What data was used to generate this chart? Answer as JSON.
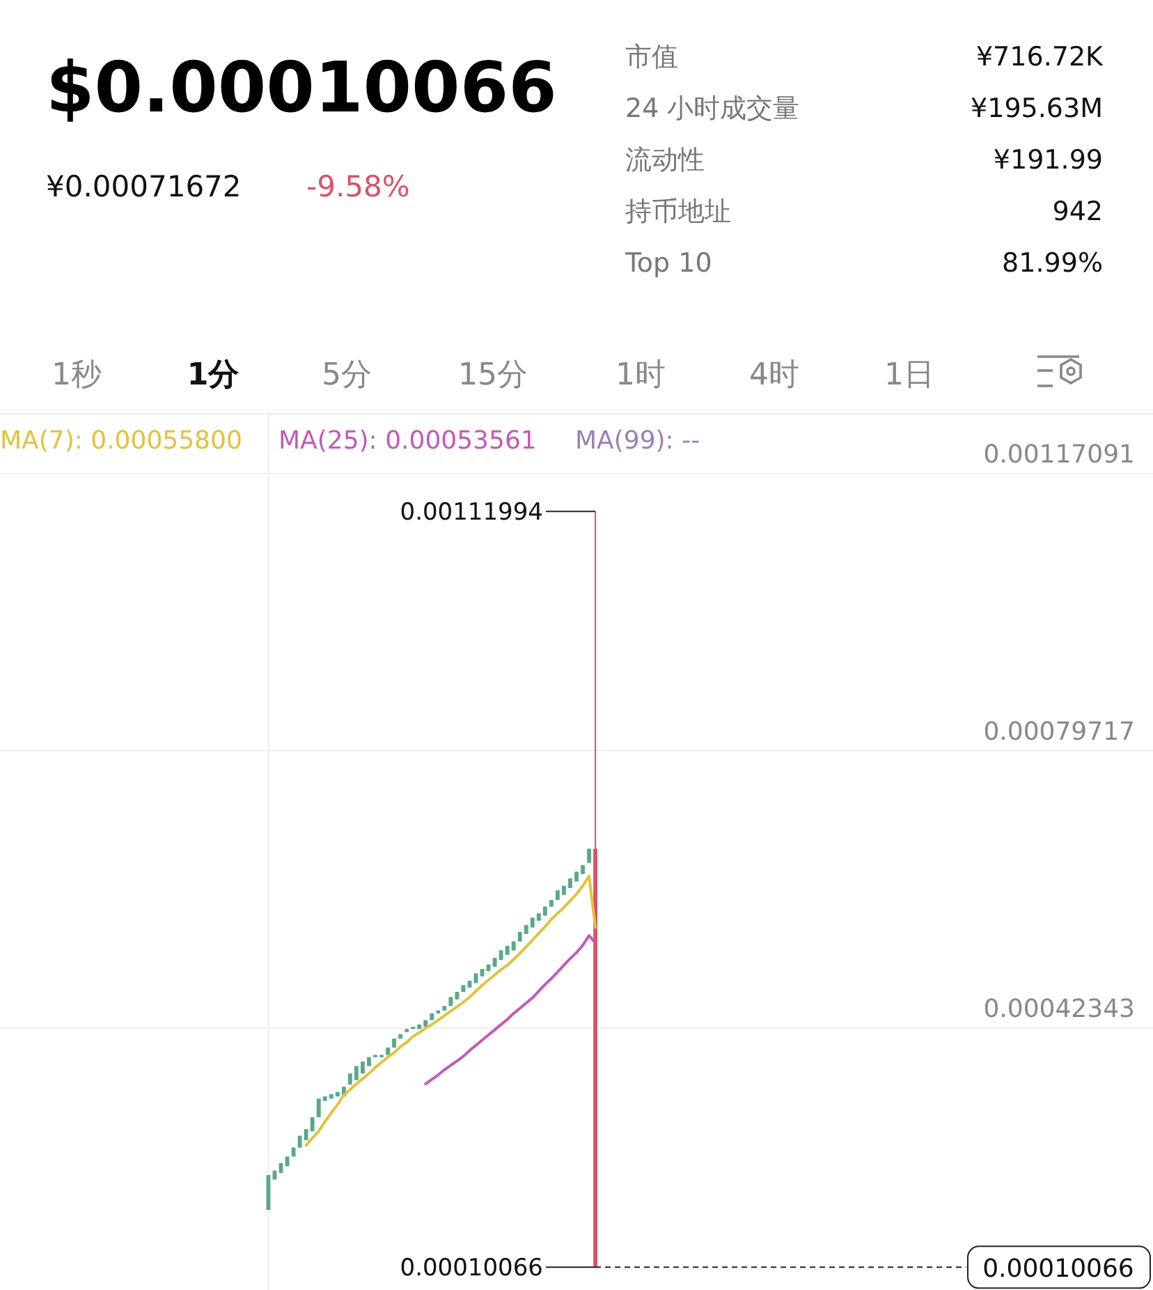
{
  "chart_data": {
    "type": "candlestick",
    "title": "$0.00010066",
    "annotations": [
      "¥0.00071672",
      "-9.58%",
      "市值",
      "¥716.72K",
      "24 小时成交量",
      "¥195.63M",
      "流动性",
      "¥191.99",
      "持币地址",
      "942",
      "Top 10",
      "81.99%",
      "1秒",
      "1分",
      "5分",
      "15分",
      "1时",
      "4时",
      "1日",
      "0.00111994",
      "0.00010066"
    ],
    "categories": [
      null,
      null,
      null,
      null,
      null,
      null,
      null,
      null,
      null,
      null,
      null,
      null,
      null,
      null,
      null,
      null,
      null,
      null,
      null,
      null,
      null,
      null,
      null,
      null,
      null,
      null,
      null,
      null,
      null,
      null,
      null,
      null,
      null,
      null,
      null,
      null,
      null,
      null,
      null,
      null,
      null,
      null,
      null,
      null,
      null,
      null,
      null,
      null,
      null,
      null,
      null,
      null,
      null,
      null,
      null,
      null,
      null,
      null,
      null,
      null,
      null,
      null,
      null,
      null,
      null,
      null,
      null,
      null,
      null,
      null,
      null,
      null,
      null,
      null,
      null,
      null,
      null,
      null,
      null,
      null,
      null,
      null,
      null,
      null,
      null,
      null,
      null,
      null,
      null,
      null,
      null,
      null,
      null,
      null,
      null,
      null,
      null,
      null,
      null,
      null,
      null,
      null,
      null,
      null,
      null,
      null,
      null,
      null,
      null,
      null,
      null,
      null,
      null,
      null,
      null,
      null,
      null,
      null,
      null,
      null,
      null,
      null,
      null,
      null,
      null,
      null,
      null,
      null,
      null,
      null,
      null,
      null,
      null,
      null,
      null,
      null,
      null,
      null,
      null,
      null,
      null,
      null,
      null,
      null,
      null,
      null,
      null,
      null,
      null,
      null,
      null,
      null,
      null,
      null,
      null,
      null,
      null,
      null,
      null,
      null,
      null,
      null,
      null,
      null,
      null,
      null,
      null,
      null,
      null,
      null,
      null,
      null,
      null,
      null,
      null,
      null,
      null,
      null,
      null,
      null,
      null,
      null,
      null
    ],
    "ohlc": [
      null,
      null,
      null,
      null,
      null,
      null,
      null,
      null,
      null,
      null,
      null,
      null,
      null,
      null,
      null,
      null,
      null,
      null,
      null,
      null,
      null,
      null,
      null,
      null,
      null,
      null,
      null,
      null,
      null,
      null,
      null,
      null,
      null,
      null,
      null,
      null,
      null,
      null,
      null,
      null,
      null,
      null,
      [
        0.000178,
        0.000225,
        0.000178,
        0.000225
      ],
      [
        0.000219,
        0.000231,
        0.000219,
        0.000231
      ],
      [
        0.000228,
        0.000241,
        0.000228,
        0.000241
      ],
      [
        0.000237,
        0.00025,
        0.000237,
        0.00025
      ],
      [
        0.00025,
        0.000262,
        0.00025,
        0.000262
      ],
      [
        0.000262,
        0.000278,
        0.000262,
        0.000278
      ],
      [
        0.000272,
        0.000287,
        0.000272,
        0.000287
      ],
      [
        0.000284,
        0.000303,
        0.000284,
        0.000303
      ],
      [
        0.000303,
        0.000328,
        0.000303,
        0.000328
      ],
      [
        0.000325,
        0.000331,
        0.000325,
        0.000331
      ],
      [
        0.000328,
        0.000334,
        0.000328,
        0.000334
      ],
      [
        0.000331,
        0.000337,
        0.000331,
        0.000337
      ],
      [
        0.000331,
        0.000344,
        0.000331,
        0.000344
      ],
      [
        0.000347,
        0.000362,
        0.000347,
        0.000362
      ],
      [
        0.000353,
        0.000372,
        0.000353,
        0.000372
      ],
      [
        0.000362,
        0.000378,
        0.000362,
        0.000378
      ],
      [
        0.000372,
        0.000384,
        0.000372,
        0.000384
      ],
      [
        0.000384,
        0.000387,
        0.000384,
        0.000387
      ],
      [
        0.000384,
        0.000387,
        0.000384,
        0.000387
      ],
      [
        0.000387,
        0.000397,
        0.000387,
        0.000397
      ],
      [
        0.000397,
        0.000409,
        0.000397,
        0.000409
      ],
      [
        0.000409,
        0.000415,
        0.000409,
        0.000415
      ],
      [
        0.000418,
        0.000422,
        0.000418,
        0.000422
      ],
      [
        0.000422,
        0.000425,
        0.000422,
        0.000425
      ],
      [
        0.000422,
        0.000428,
        0.000422,
        0.000428
      ],
      [
        0.000425,
        0.000434,
        0.000425,
        0.000434
      ],
      [
        0.000434,
        0.000443,
        0.000434,
        0.000443
      ],
      [
        0.000443,
        0.000447,
        0.000443,
        0.000447
      ],
      [
        0.000447,
        0.000453,
        0.000447,
        0.000453
      ],
      [
        0.000453,
        0.000465,
        0.000453,
        0.000465
      ],
      [
        0.000462,
        0.000472,
        0.000462,
        0.000472
      ],
      [
        0.000472,
        0.000481,
        0.000472,
        0.000481
      ],
      [
        0.000478,
        0.000487,
        0.000478,
        0.000487
      ],
      [
        0.000484,
        0.000497,
        0.000484,
        0.000497
      ],
      [
        0.000493,
        0.000503,
        0.000493,
        0.000503
      ],
      [
        0.0005,
        0.000509,
        0.0005,
        0.000509
      ],
      [
        0.000506,
        0.000518,
        0.000506,
        0.000518
      ],
      [
        0.000515,
        0.000528,
        0.000515,
        0.000528
      ],
      [
        0.000522,
        0.000534,
        0.000522,
        0.000534
      ],
      [
        0.000528,
        0.00054,
        0.000528,
        0.00054
      ],
      [
        0.00054,
        0.000553,
        0.00054,
        0.000553
      ],
      [
        0.00055,
        0.000562,
        0.00055,
        0.000562
      ],
      [
        0.000559,
        0.000572,
        0.000559,
        0.000572
      ],
      [
        0.000568,
        0.000578,
        0.000568,
        0.000578
      ],
      [
        0.000575,
        0.000587,
        0.000575,
        0.000587
      ],
      [
        0.000587,
        0.000596,
        0.000587,
        0.000596
      ],
      [
        0.000596,
        0.000609,
        0.000596,
        0.000609
      ],
      [
        0.000603,
        0.000615,
        0.000603,
        0.000615
      ],
      [
        0.000612,
        0.000625,
        0.000612,
        0.000625
      ],
      [
        0.000621,
        0.000634,
        0.000621,
        0.000634
      ],
      [
        0.000631,
        0.000643,
        0.000631,
        0.000643
      ],
      [
        0.000646,
        0.000665,
        0.000646,
        0.000665
      ],
      [
        0.000665,
        0.00111994,
        0.00010066,
        0.00010066
      ],
      null,
      null,
      null,
      null,
      null,
      null,
      null,
      null,
      null,
      null,
      null,
      null,
      null,
      null,
      null,
      null,
      null,
      null,
      null,
      null,
      null,
      null,
      null,
      null,
      null,
      null,
      null,
      null,
      null,
      null,
      null,
      null,
      null,
      null,
      null,
      null,
      null,
      null,
      null,
      null,
      null,
      null,
      null,
      null,
      null,
      null,
      null,
      null,
      null,
      null,
      null,
      null,
      null,
      null,
      null,
      null,
      null,
      null,
      null,
      null,
      null,
      null,
      null,
      null,
      null,
      null,
      null,
      null,
      null,
      null,
      null,
      null,
      null,
      null,
      null,
      null,
      null,
      null,
      null,
      null,
      null,
      null,
      null,
      null,
      null,
      null,
      null,
      null
    ],
    "series": [
      {
        "name": "MA(7): 0.00055800",
        "type": "line",
        "color": "#e2c23e",
        "values": [
          null,
          null,
          null,
          null,
          null,
          null,
          null,
          null,
          null,
          null,
          null,
          null,
          null,
          null,
          null,
          null,
          null,
          null,
          null,
          null,
          null,
          null,
          null,
          null,
          null,
          null,
          null,
          null,
          null,
          null,
          null,
          null,
          null,
          null,
          null,
          null,
          null,
          null,
          null,
          null,
          null,
          null,
          null,
          null,
          null,
          null,
          null,
          null,
          0.000265,
          0.000275,
          0.000284,
          0.000297,
          0.000309,
          0.00032,
          0.000333,
          0.00034,
          0.000348,
          0.000355,
          0.000362,
          0.00037,
          0.000377,
          0.000384,
          0.00039,
          0.000398,
          0.000404,
          0.000412,
          0.000417,
          0.000423,
          0.000428,
          0.000434,
          0.00044,
          0.000446,
          0.000452,
          0.000458,
          0.000465,
          0.000473,
          0.000481,
          0.000488,
          0.000495,
          0.000502,
          0.000508,
          0.000516,
          0.000524,
          0.000533,
          0.000542,
          0.000551,
          0.00056,
          0.00057,
          0.000578,
          0.000586,
          0.000595,
          0.000604,
          0.000615,
          0.000628,
          0.000559,
          null,
          null,
          null,
          null,
          null,
          null,
          null,
          null,
          null,
          null,
          null,
          null,
          null,
          null,
          null,
          null,
          null,
          null,
          null,
          null,
          null,
          null,
          null,
          null,
          null,
          null,
          null,
          null,
          null,
          null,
          null,
          null,
          null,
          null,
          null,
          null,
          null,
          null,
          null,
          null,
          null,
          null,
          null,
          null,
          null,
          null,
          null,
          null,
          null,
          null,
          null,
          null,
          null,
          null,
          null,
          null,
          null,
          null,
          null,
          null,
          null,
          null,
          null,
          null,
          null,
          null,
          null,
          null,
          null,
          null,
          null,
          null,
          null,
          null,
          null,
          null,
          null,
          null,
          null,
          null,
          null,
          null,
          null,
          null,
          null,
          null,
          null,
          null
        ]
      },
      {
        "name": "MA(25): 0.00053561",
        "type": "line",
        "color": "#c35ab6",
        "values": [
          null,
          null,
          null,
          null,
          null,
          null,
          null,
          null,
          null,
          null,
          null,
          null,
          null,
          null,
          null,
          null,
          null,
          null,
          null,
          null,
          null,
          null,
          null,
          null,
          null,
          null,
          null,
          null,
          null,
          null,
          null,
          null,
          null,
          null,
          null,
          null,
          null,
          null,
          null,
          null,
          null,
          null,
          null,
          null,
          null,
          null,
          null,
          null,
          null,
          null,
          null,
          null,
          null,
          null,
          null,
          null,
          null,
          null,
          null,
          null,
          null,
          null,
          null,
          null,
          null,
          null,
          null,
          0.000348,
          0.000354,
          0.00036,
          0.000367,
          0.000373,
          0.000379,
          0.000385,
          0.000393,
          0.0004,
          0.000407,
          0.000414,
          0.000421,
          0.000428,
          0.000435,
          0.000443,
          0.00045,
          0.000457,
          0.000464,
          0.000473,
          0.000482,
          0.00049,
          0.000499,
          0.000508,
          0.000517,
          0.000525,
          0.000535,
          0.000548,
          0.000538,
          null,
          null,
          null,
          null,
          null,
          null,
          null,
          null,
          null,
          null,
          null,
          null,
          null,
          null,
          null,
          null,
          null,
          null,
          null,
          null,
          null,
          null,
          null,
          null,
          null,
          null,
          null,
          null,
          null,
          null,
          null,
          null,
          null,
          null,
          null,
          null,
          null,
          null,
          null,
          null,
          null,
          null,
          null,
          null,
          null,
          null,
          null,
          null,
          null,
          null,
          null,
          null,
          null,
          null,
          null,
          null,
          null,
          null,
          null,
          null,
          null,
          null,
          null,
          null,
          null,
          null,
          null,
          null,
          null,
          null,
          null,
          null,
          null,
          null,
          null,
          null,
          null,
          null,
          null,
          null,
          null,
          null,
          null,
          null,
          null,
          null,
          null,
          null
        ]
      },
      {
        "name": "MA(99): --",
        "type": "line",
        "color": "#9a80b8",
        "values": [
          null,
          null,
          null,
          null,
          null,
          null,
          null,
          null,
          null,
          null,
          null,
          null,
          null,
          null,
          null,
          null,
          null,
          null,
          null,
          null,
          null,
          null,
          null,
          null,
          null,
          null,
          null,
          null,
          null,
          null,
          null,
          null,
          null,
          null,
          null,
          null,
          null,
          null,
          null,
          null,
          null,
          null,
          null,
          null,
          null,
          null,
          null,
          null,
          null,
          null,
          null,
          null,
          null,
          null,
          null,
          null,
          null,
          null,
          null,
          null,
          null,
          null,
          null,
          null,
          null,
          null,
          null,
          null,
          null,
          null,
          null,
          null,
          null,
          null,
          null,
          null,
          null,
          null,
          null,
          null,
          null,
          null,
          null,
          null,
          null,
          null,
          null,
          null,
          null,
          null,
          null,
          null,
          null,
          null,
          null,
          null,
          null,
          null,
          null,
          null,
          null,
          null,
          null,
          null,
          null,
          null,
          null,
          null,
          null,
          null,
          null,
          null,
          null,
          null,
          null,
          null,
          null,
          null,
          null,
          null,
          null,
          null,
          null,
          null,
          null,
          null,
          null,
          null,
          null,
          null,
          null,
          null,
          null,
          null,
          null,
          null,
          null,
          null,
          null,
          null,
          null,
          null,
          null,
          null,
          null,
          null,
          null,
          null,
          null,
          null,
          null,
          null,
          null,
          null,
          null,
          null,
          null,
          null,
          null,
          null,
          null,
          null,
          null,
          null,
          null,
          null,
          null,
          null,
          null,
          null,
          null,
          null,
          null,
          null,
          null,
          null,
          null,
          null,
          null,
          null,
          null,
          null,
          null
        ]
      }
    ],
    "ylim": [
      7e-05,
      0.00117091
    ],
    "yticks": [
      0.00117091,
      0.00079717,
      0.00042343
    ],
    "ref_lines": [
      {
        "axis": "y",
        "value": 0.00010066,
        "label": "0.00010066",
        "line_style": "dashed"
      }
    ],
    "grid": "y",
    "legend": "top left"
  }
}
